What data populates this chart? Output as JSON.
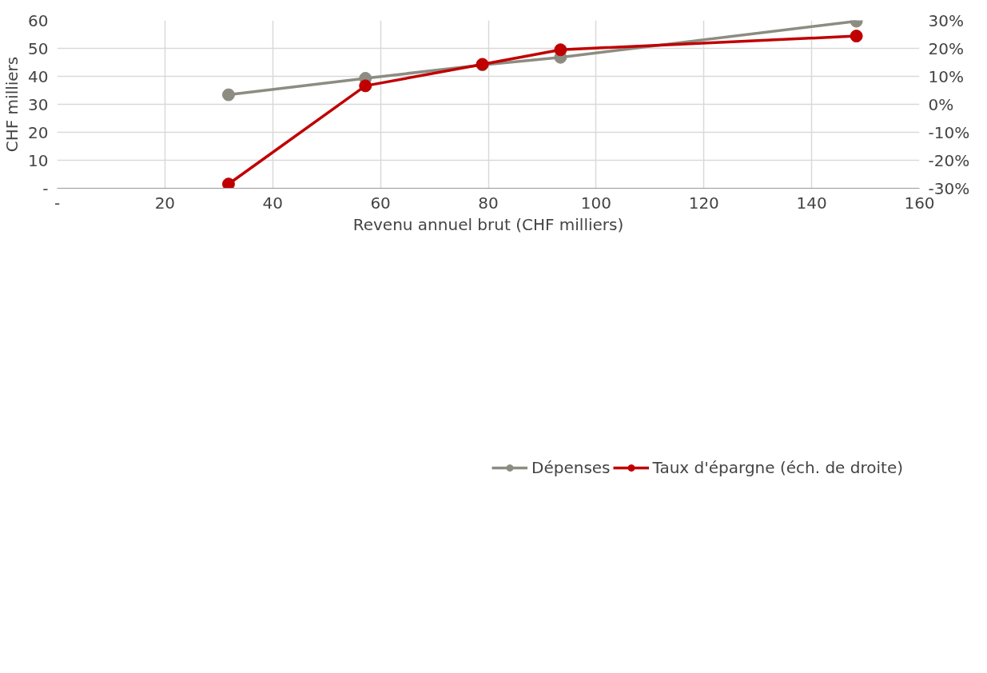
{
  "chart_data": {
    "type": "line",
    "xlabel": "Revenu annuel brut (CHF milliers)",
    "ylabel": "CHF milliers",
    "x": [
      31.8,
      57.2,
      78.9,
      93.4,
      148.3
    ],
    "series": [
      {
        "name": "Dépenses",
        "color": "#8c8c82",
        "values": [
          33.4,
          39.3,
          44.1,
          46.8,
          59.7
        ]
      },
      {
        "name": "Taux d'épargne (éch. de droite)",
        "color": "#c00000",
        "axis": "y2",
        "values": [
          -28.5,
          6.6,
          14.3,
          19.5,
          24.4
        ]
      }
    ],
    "xlim": [
      0,
      160
    ],
    "xticks": [
      {
        "value": 0,
        "label": "-"
      },
      20,
      40,
      60,
      80,
      100,
      120,
      140,
      160
    ],
    "ylim": [
      0,
      60
    ],
    "yticks": [
      {
        "value": 0,
        "label": "-"
      },
      10,
      20,
      30,
      40,
      50,
      60
    ],
    "y2lim": [
      -30,
      30
    ],
    "y2ticks": [
      {
        "value": -30,
        "label": "-30%"
      },
      {
        "value": -20,
        "label": "-20%"
      },
      {
        "value": -10,
        "label": "-10%"
      },
      {
        "value": 0,
        "label": "0%"
      },
      {
        "value": 10,
        "label": "10%"
      },
      {
        "value": 20,
        "label": "20%"
      },
      {
        "value": 30,
        "label": "30%"
      }
    ],
    "grid": true,
    "legend": "bottom",
    "marker": "circle",
    "line_style": "solid"
  }
}
